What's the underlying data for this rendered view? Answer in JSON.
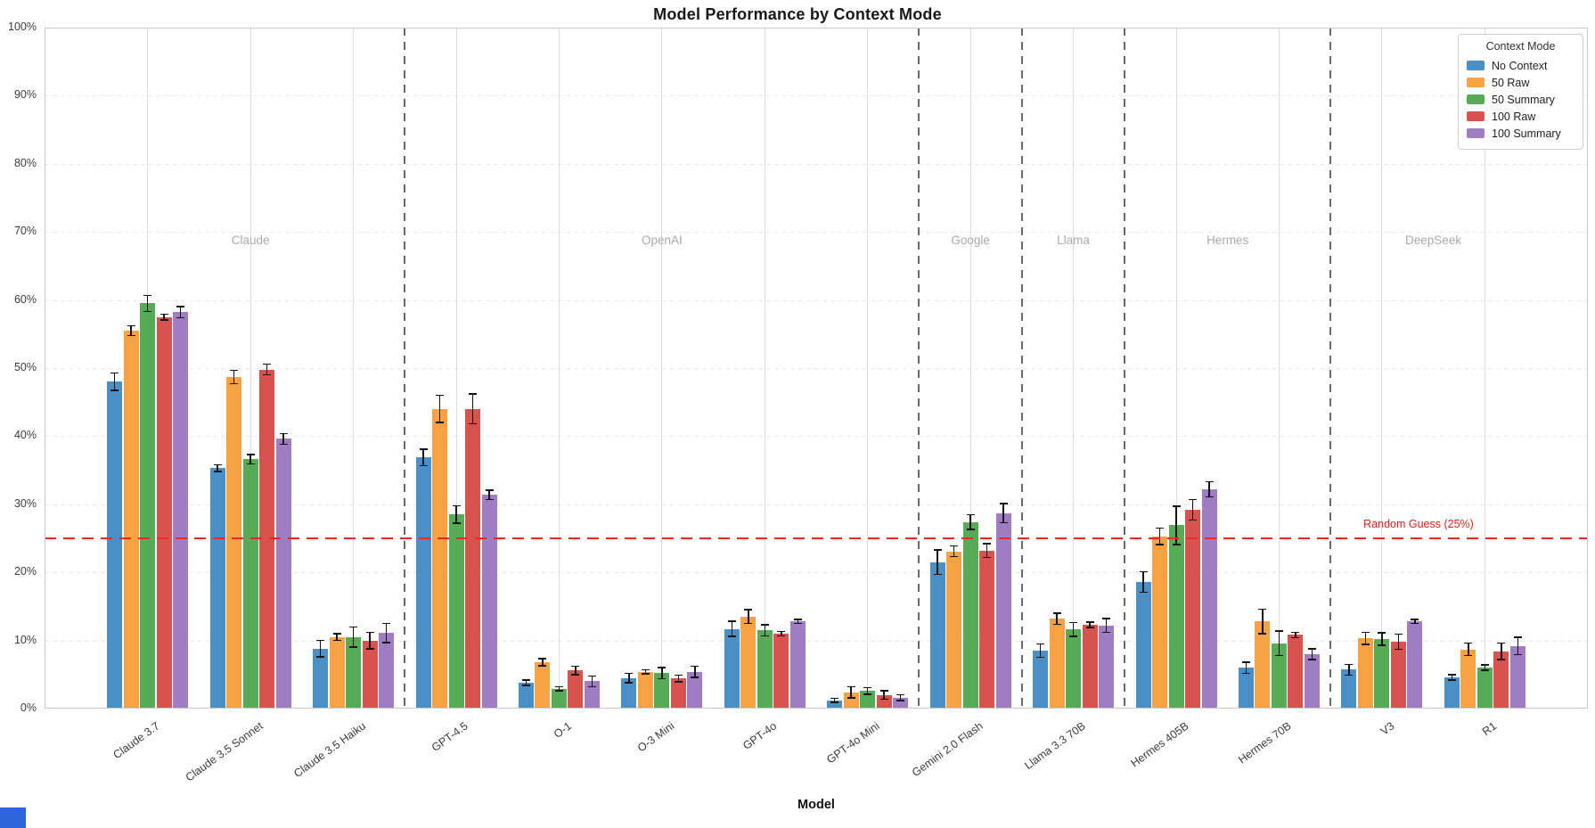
{
  "chart_data": {
    "type": "bar",
    "title": "Model Performance by Context Mode",
    "xlabel": "Model",
    "ylabel": "",
    "ylim": [
      0,
      100
    ],
    "ytick_step": 10,
    "y_tick_labels": [
      "0%",
      "10%",
      "20%",
      "30%",
      "40%",
      "50%",
      "60%",
      "70%",
      "80%",
      "90%",
      "100%"
    ],
    "grid": true,
    "legend": {
      "title": "Context Mode",
      "position": "top-right"
    },
    "reference_line": {
      "value": 25,
      "label": "Random Guess (25%)",
      "color": "#e32019"
    },
    "categories": [
      "Claude 3.7",
      "Claude 3.5 Sonnet",
      "Claude 3.5 Haiku",
      "GPT-4.5",
      "O-1",
      "O-3 Mini",
      "GPT-4o",
      "GPT-4o Mini",
      "Gemini 2.0 Flash",
      "Llama 3.3 70B",
      "Hermes 405B",
      "Hermes 70B",
      "V3",
      "R1"
    ],
    "sections": [
      {
        "name": "Claude",
        "from": 0,
        "to": 2
      },
      {
        "name": "OpenAI",
        "from": 3,
        "to": 7
      },
      {
        "name": "Google",
        "from": 8,
        "to": 8
      },
      {
        "name": "Llama",
        "from": 9,
        "to": 9
      },
      {
        "name": "Hermes",
        "from": 10,
        "to": 11
      },
      {
        "name": "DeepSeek",
        "from": 12,
        "to": 13
      }
    ],
    "series": [
      {
        "name": "No Context",
        "color": "#4a90c6",
        "values": [
          48.0,
          35.3,
          8.8,
          36.9,
          3.8,
          4.5,
          11.7,
          1.2,
          21.5,
          8.5,
          18.6,
          6.0,
          5.7,
          4.6
        ],
        "errors": [
          1.3,
          0.5,
          1.2,
          1.2,
          0.4,
          0.7,
          1.1,
          0.3,
          1.8,
          1.0,
          1.5,
          0.8,
          0.8,
          0.4
        ]
      },
      {
        "name": "50 Raw",
        "color": "#f9a243",
        "values": [
          55.5,
          48.7,
          10.5,
          44.0,
          6.8,
          5.4,
          13.5,
          2.4,
          23.1,
          13.2,
          25.3,
          12.8,
          10.3,
          8.7
        ],
        "errors": [
          0.7,
          1.0,
          0.5,
          2.0,
          0.5,
          0.3,
          1.0,
          0.8,
          0.8,
          0.8,
          1.2,
          1.8,
          0.9,
          0.9
        ]
      },
      {
        "name": "50 Summary",
        "color": "#57ab57",
        "values": [
          59.5,
          36.6,
          10.5,
          28.5,
          2.9,
          5.2,
          11.5,
          2.6,
          27.4,
          11.6,
          26.9,
          9.6,
          10.2,
          6.0
        ],
        "errors": [
          1.2,
          0.7,
          1.5,
          1.3,
          0.3,
          0.8,
          0.8,
          0.5,
          1.1,
          1.0,
          2.8,
          1.8,
          0.9,
          0.4
        ]
      },
      {
        "name": "100 Raw",
        "color": "#d9534e",
        "values": [
          57.5,
          49.8,
          10.0,
          44.0,
          5.6,
          4.4,
          11.0,
          2.0,
          23.2,
          12.3,
          29.2,
          10.8,
          9.8,
          8.4
        ],
        "errors": [
          0.4,
          0.8,
          1.2,
          2.2,
          0.6,
          0.5,
          0.3,
          0.6,
          1.0,
          0.4,
          1.5,
          0.4,
          1.1,
          1.2
        ]
      },
      {
        "name": "100 Summary",
        "color": "#a07cc5",
        "values": [
          58.2,
          39.6,
          11.1,
          31.4,
          4.0,
          5.4,
          12.8,
          1.6,
          28.7,
          12.2,
          32.2,
          8.0,
          12.8,
          9.2
        ],
        "errors": [
          0.8,
          0.8,
          1.4,
          0.7,
          0.8,
          0.8,
          0.3,
          0.4,
          1.4,
          1.0,
          1.1,
          0.8,
          0.3,
          1.3
        ]
      }
    ]
  }
}
